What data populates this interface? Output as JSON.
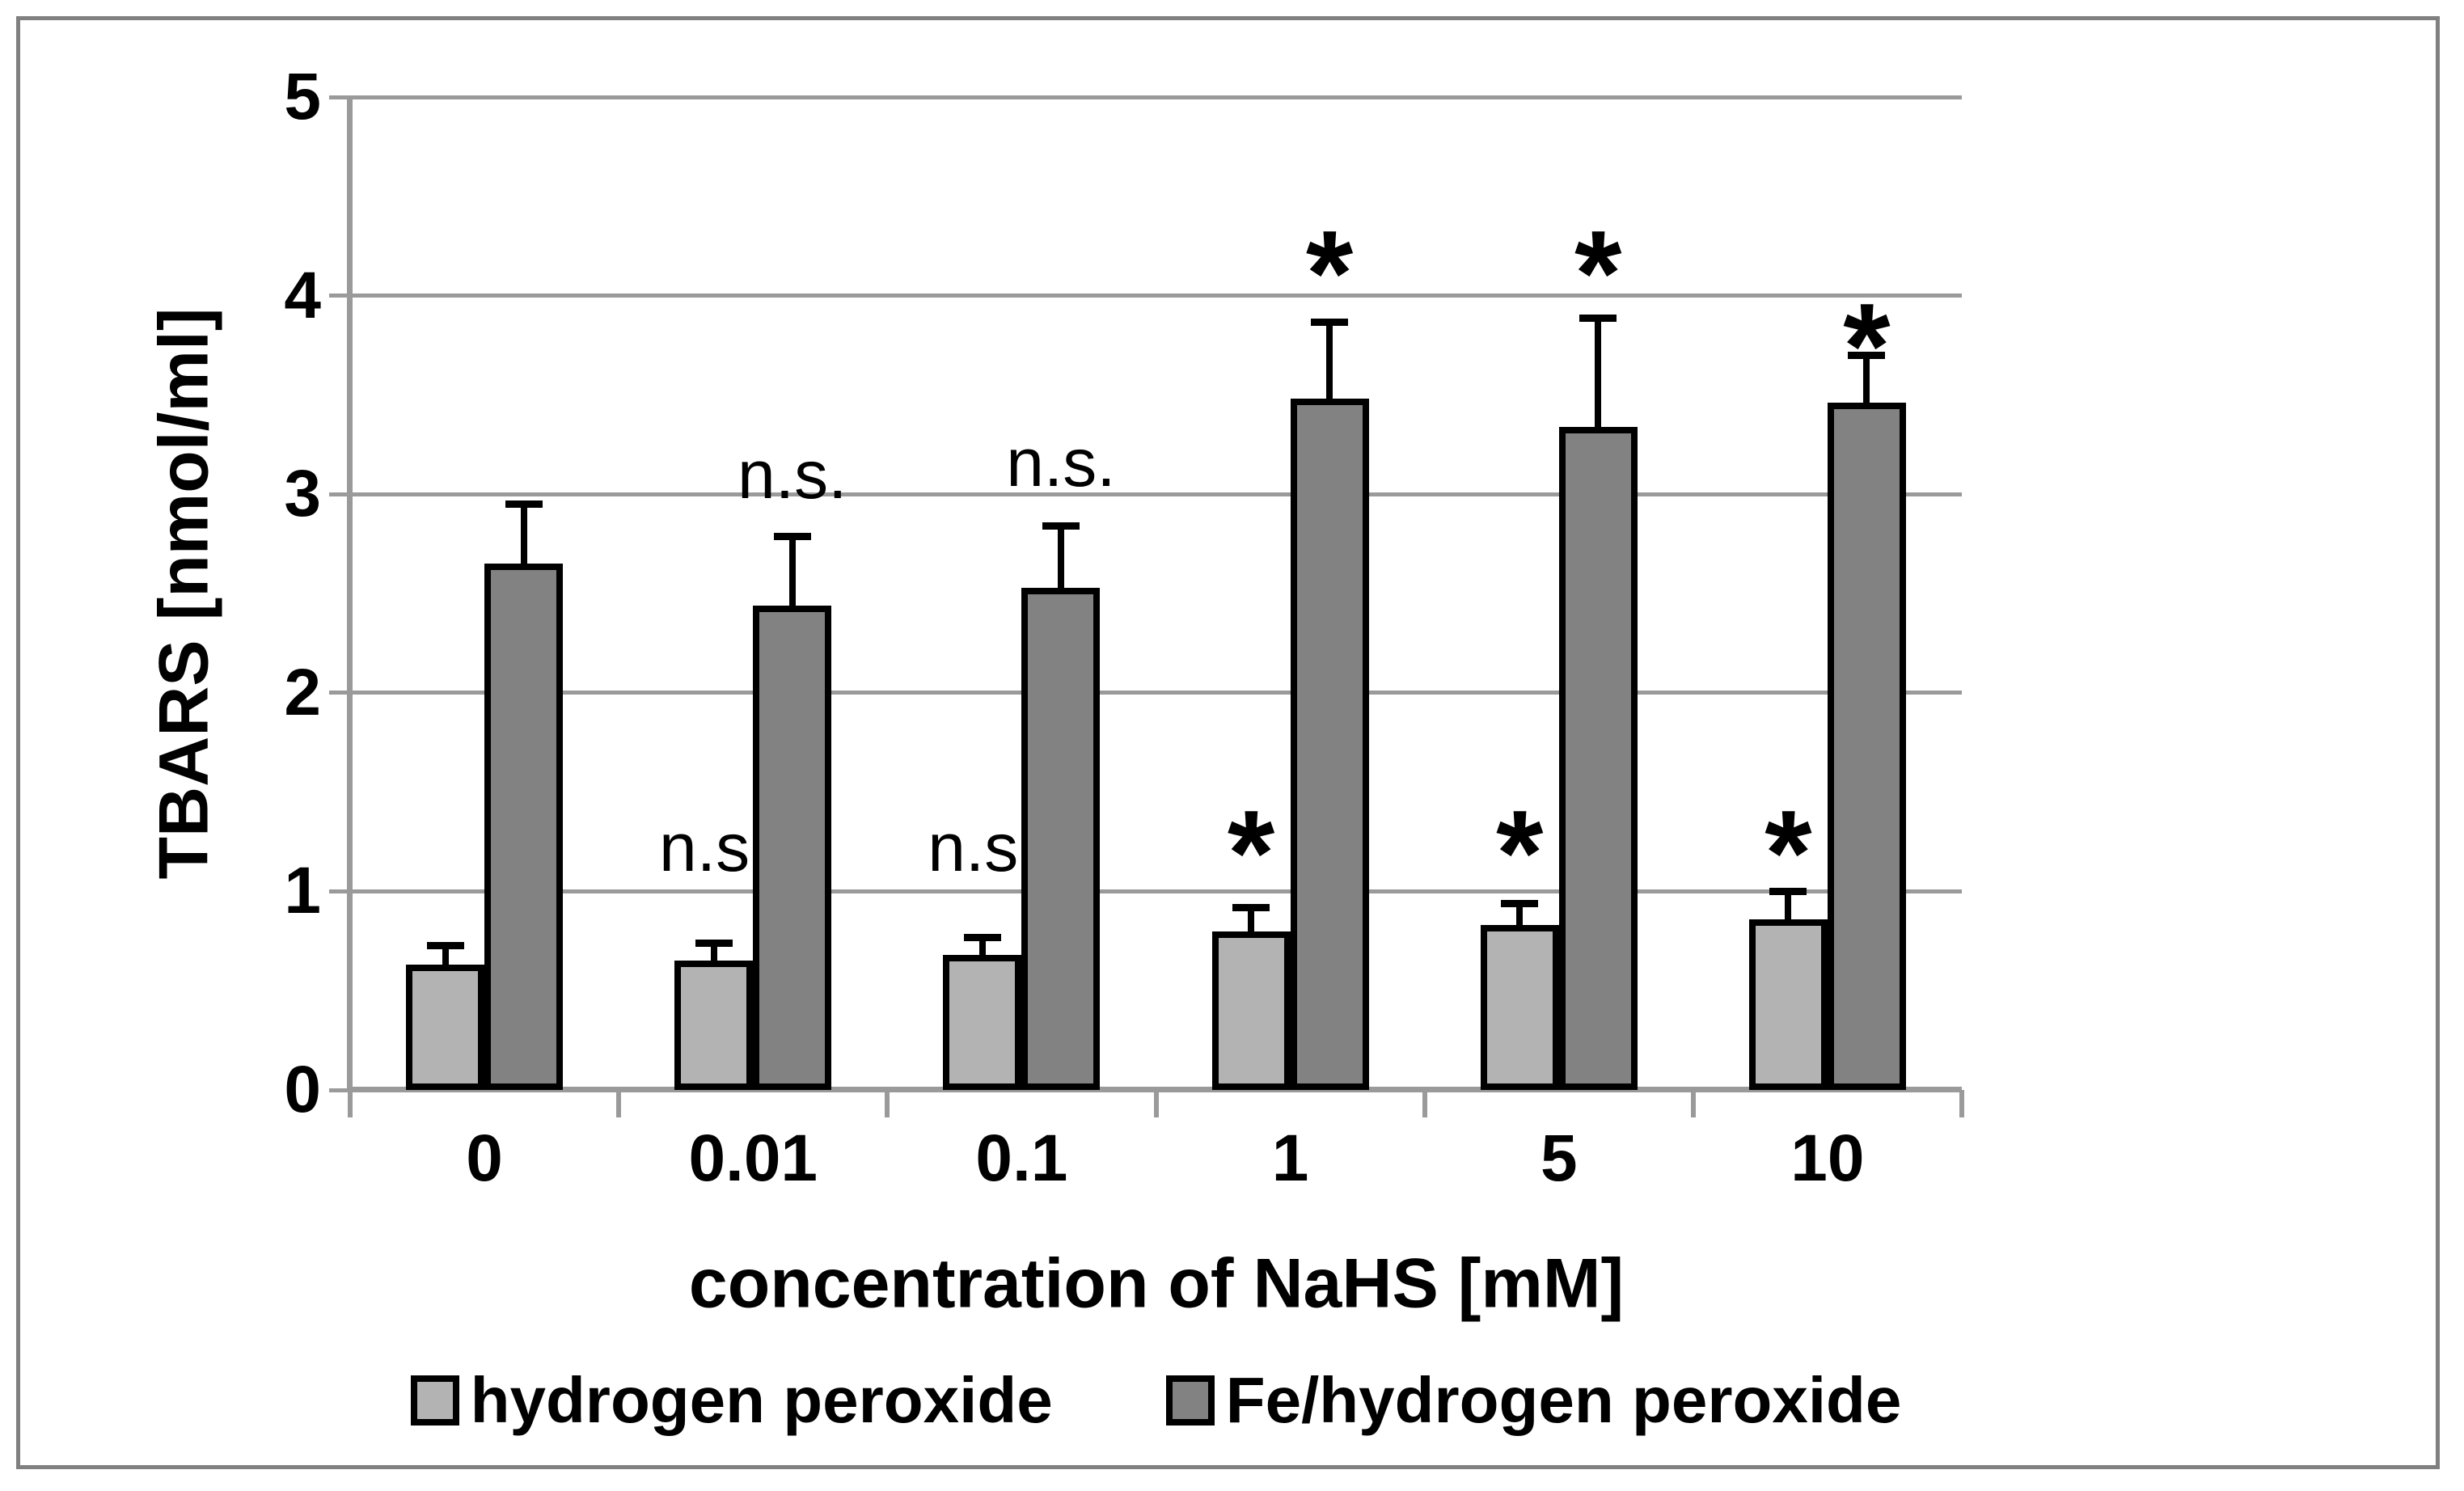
{
  "figure": {
    "background": "#ffffff",
    "border_color": "#808080",
    "axis_color": "#9a9a9a",
    "gridline_color": "#9a9a9a"
  },
  "chart_data": {
    "type": "bar",
    "title": "",
    "xlabel": "concentration of NaHS [mM]",
    "ylabel": "TBARS [nmol/ml]",
    "ylim": [
      0,
      5
    ],
    "yticks": [
      0,
      1,
      2,
      3,
      4,
      5
    ],
    "grid": true,
    "legend_position": "bottom",
    "categories": [
      "0",
      "0.01",
      "0.1",
      "1",
      "5",
      "10"
    ],
    "series": [
      {
        "name": "hydrogen peroxide",
        "color": "#b3b3b3",
        "values": [
          0.63,
          0.65,
          0.68,
          0.8,
          0.83,
          0.86
        ],
        "errors": [
          0.1,
          0.09,
          0.09,
          0.12,
          0.11,
          0.14
        ],
        "annotations": [
          null,
          "n.s.",
          "n.s.",
          "*",
          "*",
          "*"
        ],
        "annotation_y": [
          null,
          1.22,
          1.22,
          1.3,
          1.3,
          1.3
        ]
      },
      {
        "name": "Fe/hydrogen peroxide",
        "color": "#828282",
        "values": [
          2.65,
          2.44,
          2.53,
          3.48,
          3.34,
          3.46
        ],
        "errors": [
          0.3,
          0.35,
          0.31,
          0.39,
          0.55,
          0.24
        ],
        "annotations": [
          null,
          "n.s.",
          "n.s.",
          "*",
          "*",
          "*"
        ],
        "annotation_y": [
          null,
          3.1,
          3.16,
          4.22,
          4.22,
          3.85
        ]
      }
    ]
  }
}
